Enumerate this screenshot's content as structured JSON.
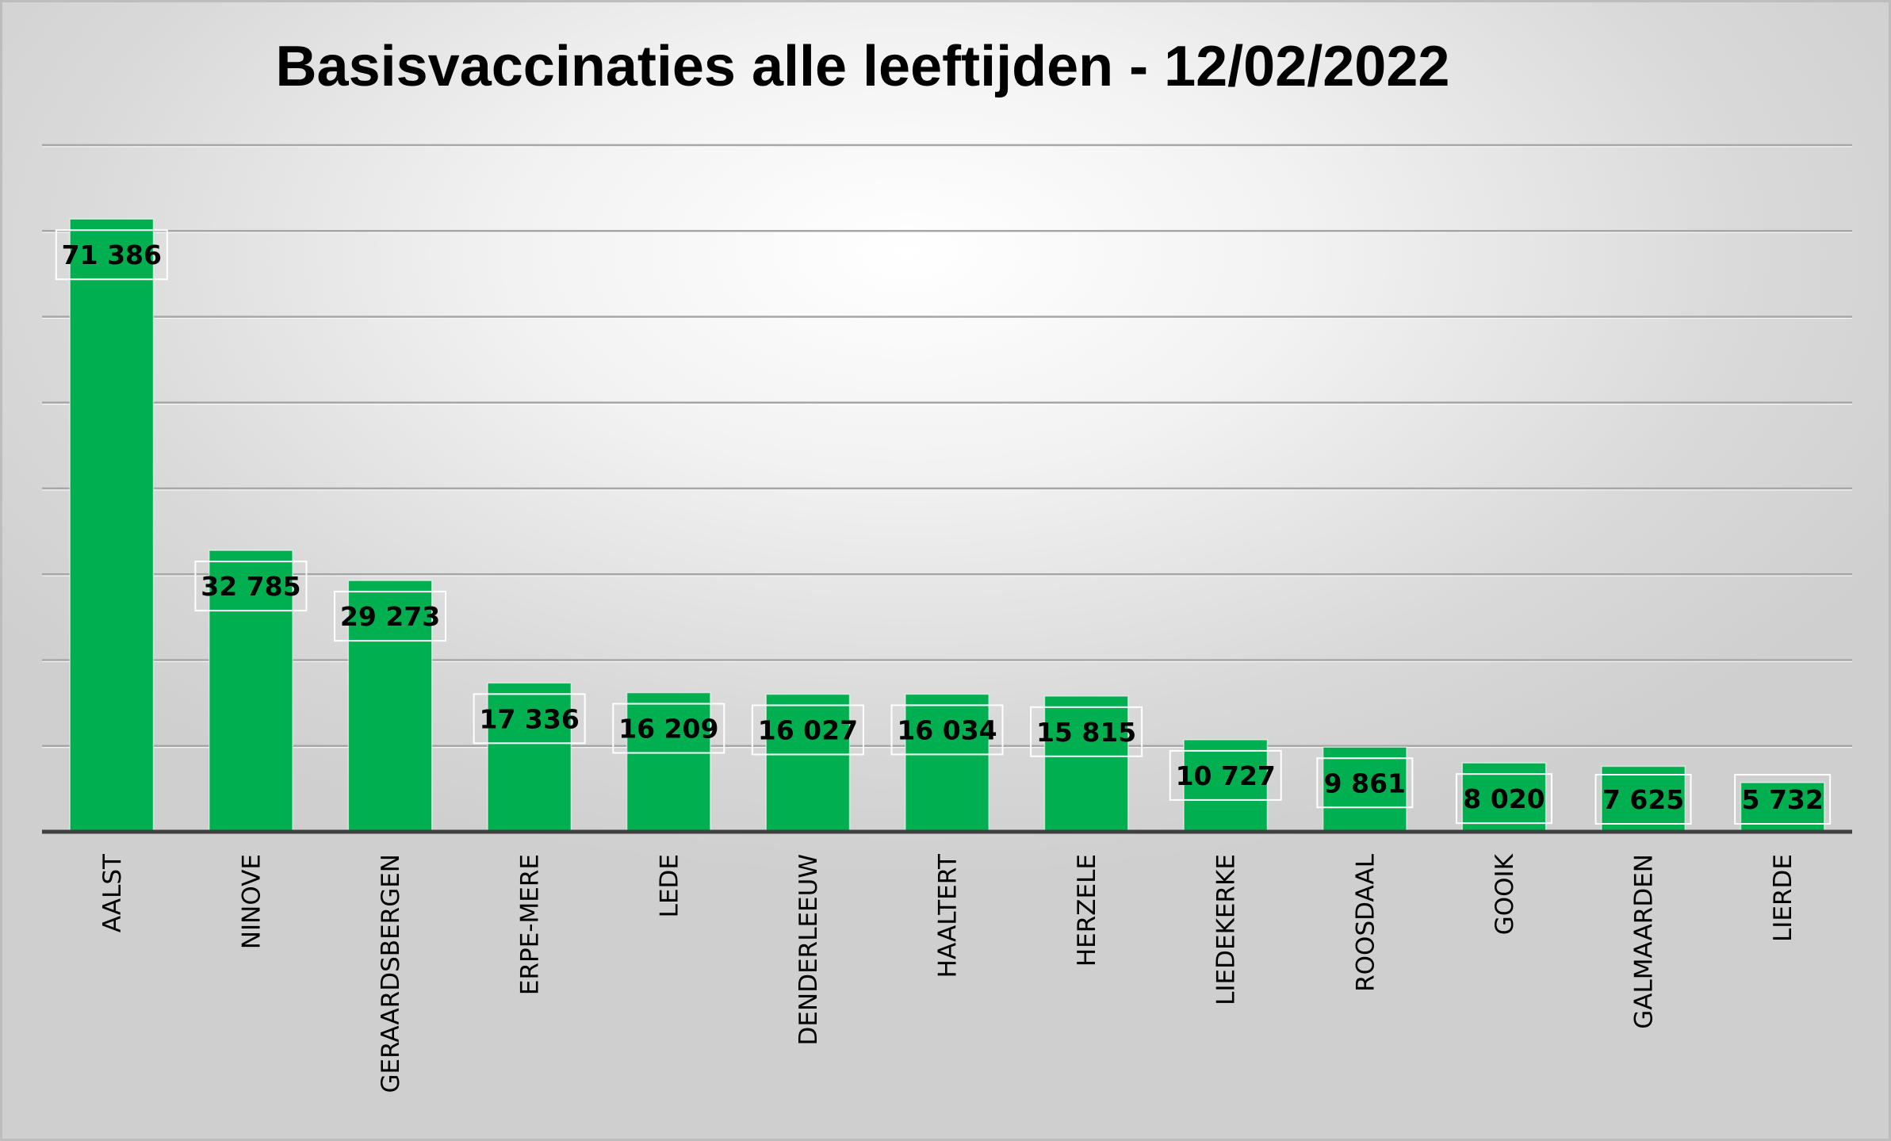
{
  "colors": {
    "bar": "#00b050",
    "grid": "#a6a6a6",
    "axis": "#404040",
    "label_box_stroke": "#ffffff"
  },
  "chart_data": {
    "type": "bar",
    "title": "Basisvaccinaties alle leeftijden - 12/02/2022",
    "xlabel": "",
    "ylabel": "",
    "categories": [
      "AALST",
      "NINOVE",
      "GERAARDSBERGEN",
      "ERPE-MERE",
      "LEDE",
      "DENDERLEEUW",
      "HAALTERT",
      "HERZELE",
      "LIEDEKERKE",
      "ROOSDAAL",
      "GOOIK",
      "GALMAARDEN",
      "LIERDE"
    ],
    "values": [
      71386,
      32785,
      29273,
      17336,
      16209,
      16027,
      16034,
      15815,
      10727,
      9861,
      8020,
      7625,
      5732
    ],
    "value_labels": [
      "71 386",
      "32 785",
      "29 273",
      "17 336",
      "16 209",
      "16 027",
      "16 034",
      "15 815",
      "10 727",
      "9 861",
      "8 020",
      "7 625",
      "5 732"
    ],
    "ylim": [
      0,
      80000
    ],
    "ytick_step": 10000,
    "y_tick_labels_shown": false,
    "grid": true,
    "legend": "none"
  }
}
